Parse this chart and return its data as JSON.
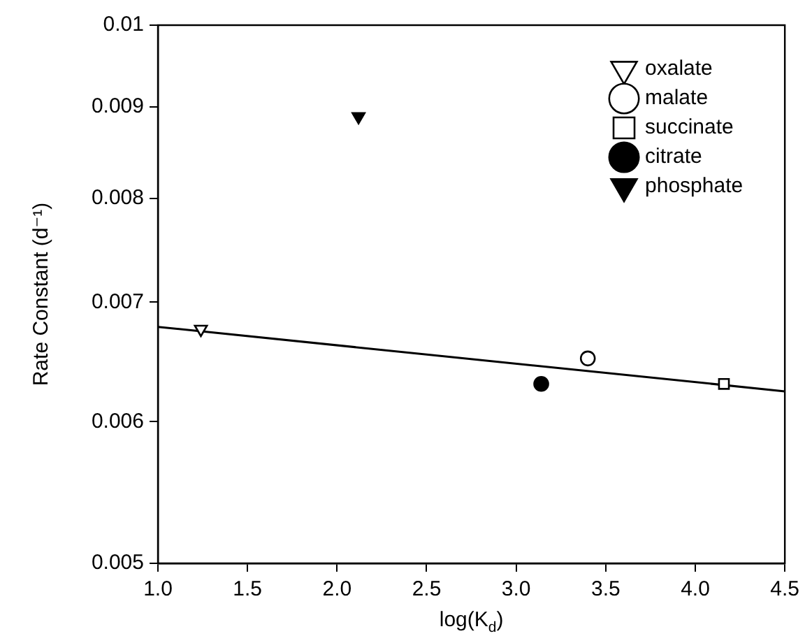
{
  "chart_data": {
    "type": "scatter",
    "xlabel": "log(K$_{d}$)",
    "ylabel": "Rate Constant (d⁻¹)",
    "xlim": [
      1.0,
      4.5
    ],
    "xticks": [
      {
        "value": 1,
        "label": "1.0"
      },
      {
        "value": 1.5,
        "label": "1.5"
      },
      {
        "value": 2,
        "label": "2.0"
      },
      {
        "value": 2.5,
        "label": "2.5"
      },
      {
        "value": 3,
        "label": "3.0"
      },
      {
        "value": 3.5,
        "label": "3.5"
      },
      {
        "value": 4,
        "label": "4.0"
      },
      {
        "value": 4.5,
        "label": "4.5"
      }
    ],
    "ylim": [
      0.005,
      0.01
    ],
    "yticks": [
      0.005,
      0.006,
      0.007,
      0.008,
      0.009,
      0.01
    ],
    "log": "y",
    "grid": false,
    "legend": "top right",
    "series": [
      {
        "name": "oxalate",
        "color": "#ffffff",
        "marker": "triangle",
        "x": [
          1.24
        ],
        "values": [
          0.00676
        ]
      },
      {
        "name": "malate",
        "color": "#ffffff",
        "marker": "circle",
        "x": [
          3.4
        ],
        "values": [
          0.00651
        ]
      },
      {
        "name": "succinate",
        "color": "#ffffff",
        "marker": "square",
        "x": [
          4.16
        ],
        "values": [
          0.0063
        ]
      },
      {
        "name": "citrate",
        "color": "#000000",
        "marker": "circle",
        "x": [
          3.14
        ],
        "values": [
          0.0063
        ]
      },
      {
        "name": "phosphate",
        "color": "#000000",
        "marker": "triangle",
        "x": [
          2.12
        ],
        "values": [
          0.00889
        ]
      },
      {
        "type": "line",
        "color": "#000000",
        "marker": "none",
        "line_style": "solid",
        "x": [
          1.0,
          4.5
        ],
        "values": [
          0.00678,
          0.00624
        ]
      }
    ]
  }
}
